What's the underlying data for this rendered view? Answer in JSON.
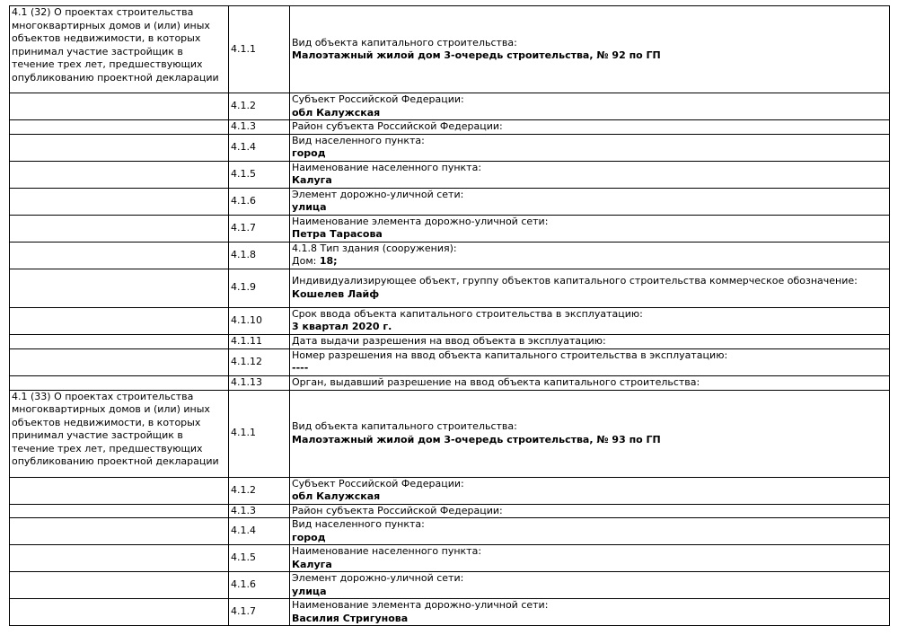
{
  "table": {
    "rows": [
      {
        "section": "4.1 (32) О проектах строительства многоквартирных домов и (или) иных объектов недвижимости, в которых принимал участие застройщик в течение трех лет, предшествующих опубликованию проектной декларации",
        "code": "4.1.1",
        "label": "Вид объекта капитального строительства:",
        "value": "Малоэтажный жилой дом 3-очередь строительства, № 92 по ГП"
      },
      {
        "code": "4.1.2",
        "label": "Субъект Российской Федерации:",
        "value": "обл Калужская"
      },
      {
        "code": "4.1.3",
        "label": "Район субъекта Российской Федерации:"
      },
      {
        "code": "4.1.4",
        "label": "Вид населенного пункта:",
        "value": "город"
      },
      {
        "code": "4.1.5",
        "label": "Наименование населенного пункта:",
        "value": "Калуга"
      },
      {
        "code": "4.1.6",
        "label": "Элемент дорожно-уличной сети:",
        "value": "улица"
      },
      {
        "code": "4.1.7",
        "label": "Наименование элемента дорожно-уличной сети:",
        "value": "Петра Тарасова"
      },
      {
        "code": "4.1.8",
        "label": "4.1.8 Тип здания (сооружения):",
        "value_prefix": "Дом:",
        "value": "18;"
      },
      {
        "code": "4.1.9",
        "label": "Индивидуализирующее объект, группу объектов капитального строительства коммерческое обозначение:",
        "value": "Кошелев Лайф"
      },
      {
        "code": "4.1.10",
        "label": "Срок ввода объекта капитального строительства в эксплуатацию:",
        "value": "3 квартал 2020 г."
      },
      {
        "code": "4.1.11",
        "label": "Дата выдачи разрешения на ввод объекта в эксплуатацию:"
      },
      {
        "code": "4.1.12",
        "label": "Номер разрешения на ввод объекта капитального строительства в эксплуатацию:",
        "value": "----"
      },
      {
        "code": "4.1.13",
        "label": "Орган, выдавший разрешение на ввод объекта капитального строительства:"
      },
      {
        "section": "4.1 (33) О проектах строительства многоквартирных домов и (или) иных объектов недвижимости, в которых принимал участие застройщик в течение трех лет, предшествующих опубликованию проектной декларации",
        "code": "4.1.1",
        "label": "Вид объекта капитального строительства:",
        "value": "Малоэтажный жилой дом 3-очередь строительства, № 93 по ГП"
      },
      {
        "code": "4.1.2",
        "label": "Субъект Российской Федерации:",
        "value": "обл Калужская"
      },
      {
        "code": "4.1.3",
        "label": "Район субъекта Российской Федерации:"
      },
      {
        "code": "4.1.4",
        "label": "Вид населенного пункта:",
        "value": "город"
      },
      {
        "code": "4.1.5",
        "label": "Наименование населенного пункта:",
        "value": "Калуга"
      },
      {
        "code": "4.1.6",
        "label": "Элемент дорожно-уличной сети:",
        "value": "улица"
      },
      {
        "code": "4.1.7",
        "label": "Наименование элемента дорожно-уличной сети:",
        "value": "Василия Стригунова"
      }
    ]
  }
}
